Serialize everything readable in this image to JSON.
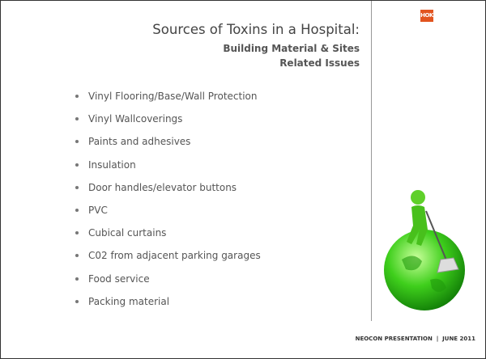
{
  "header": {
    "title": "Sources of Toxins in a Hospital:",
    "subtitle": "Building Material & Sites Related Issues",
    "logo": "HOK"
  },
  "bullets": [
    "Vinyl Flooring/Base/Wall Protection",
    "Vinyl Wallcoverings",
    "Paints and adhesives",
    "Insulation",
    "Door handles/elevator buttons",
    "PVC",
    "Cubical curtains",
    "C02 from adjacent parking garages",
    "Food service",
    "Packing material"
  ],
  "footer": "NEOCON PRESENTATION  |  JUNE 2011"
}
